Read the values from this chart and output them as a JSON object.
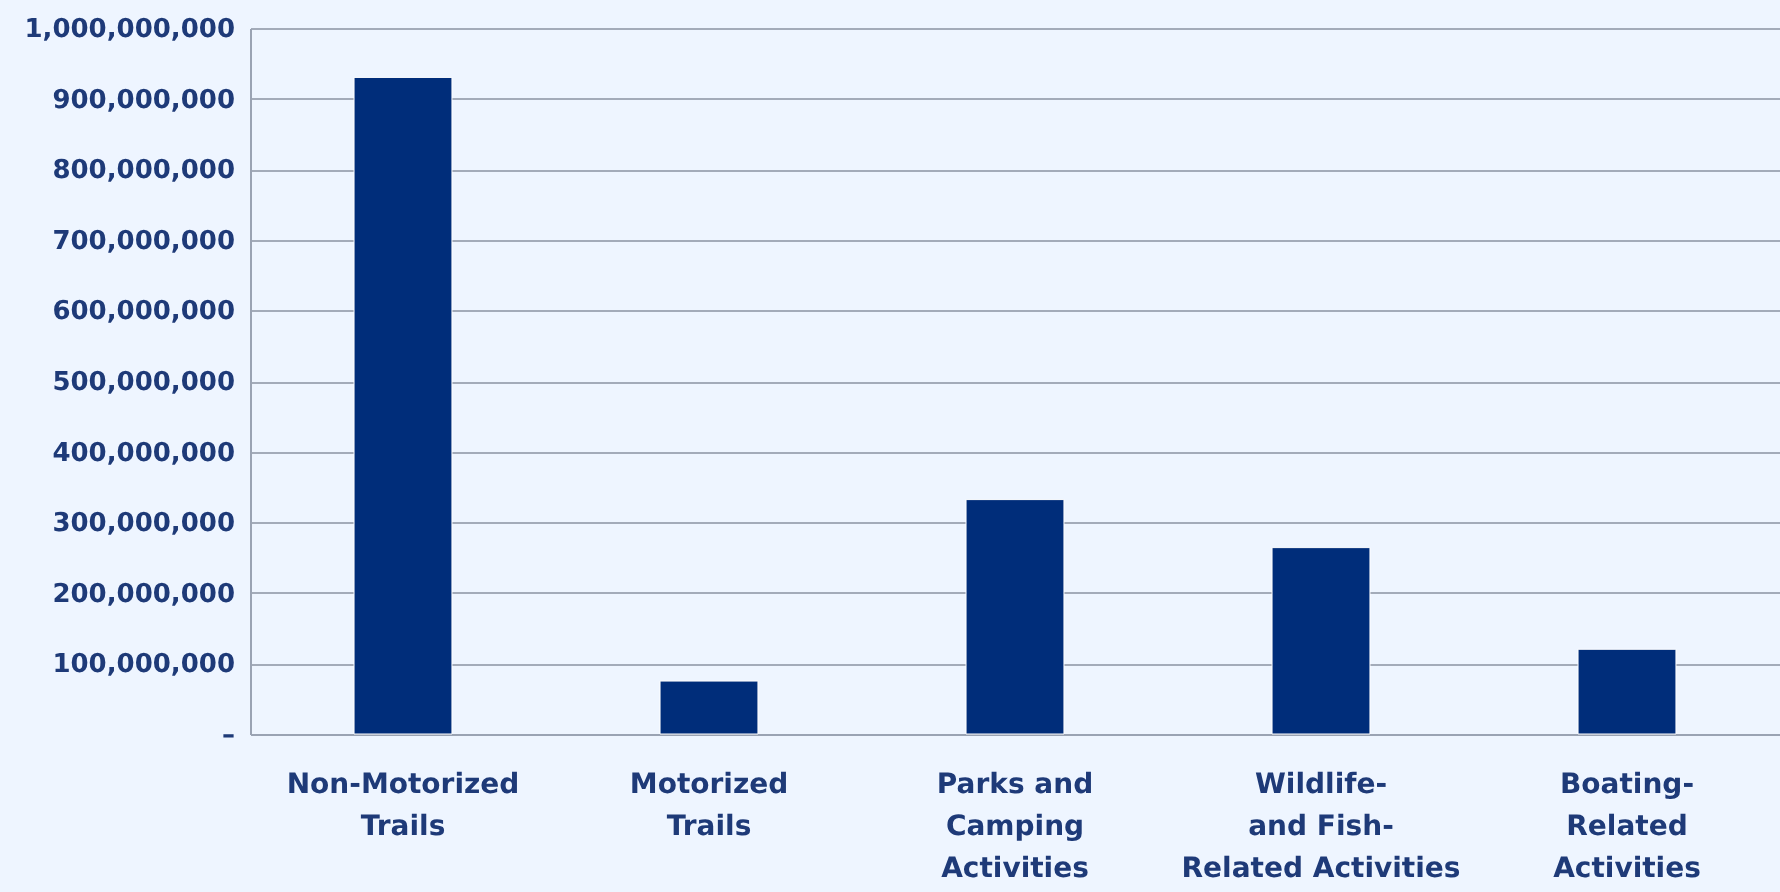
{
  "chart_data": {
    "type": "bar",
    "categories": [
      "Non-Motorized\nTrails",
      "Motorized\nTrails",
      "Parks and\nCamping\nActivities",
      "Wildlife-\nand Fish-\nRelated Activities",
      "Boating-\nRelated\nActivities"
    ],
    "values": [
      930000000,
      75000000,
      332000000,
      264000000,
      120000000
    ],
    "color": "#002d7a",
    "ylim": [
      0,
      1000000000
    ],
    "yticks": [
      {
        "value": 0,
        "label": "–"
      },
      {
        "value": 100000000,
        "label": "100,000,000"
      },
      {
        "value": 200000000,
        "label": "200,000,000"
      },
      {
        "value": 300000000,
        "label": "300,000,000"
      },
      {
        "value": 400000000,
        "label": "400,000,000"
      },
      {
        "value": 500000000,
        "label": "500,000,000"
      },
      {
        "value": 600000000,
        "label": "600,000,000"
      },
      {
        "value": 700000000,
        "label": "700,000,000"
      },
      {
        "value": 800000000,
        "label": "800,000,000"
      },
      {
        "value": 900000000,
        "label": "900,000,000"
      },
      {
        "value": 1000000000,
        "label": "1,000,000,000"
      }
    ],
    "grid": true
  }
}
